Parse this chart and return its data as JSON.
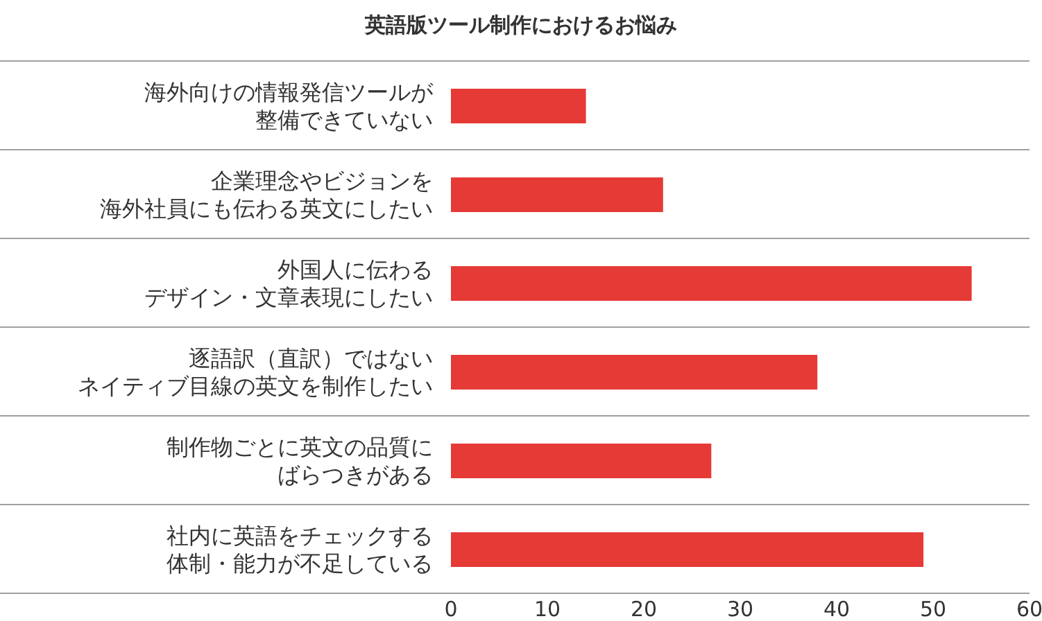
{
  "chart_data": {
    "type": "bar",
    "orientation": "horizontal",
    "title": "英語版ツール制作におけるお悩み",
    "categories": [
      "海外向けの情報発信ツールが整備できていない",
      "企業理念やビジョンを海外社員にも伝わる英文にしたい",
      "外国人に伝わるデザイン・文章表現にしたい",
      "逐語訳（直訳）ではないネイティブ目線の英文を制作したい",
      "制作物ごとに英文の品質にばらつきがある",
      "社内に英語をチェックする体制・能力が不足している"
    ],
    "values": [
      14,
      22,
      54,
      38,
      27,
      49
    ],
    "color": "#e53a36",
    "xlim": [
      0,
      60
    ],
    "xticks": [
      0,
      10,
      20,
      30,
      40,
      50,
      60
    ],
    "grid": "y"
  }
}
